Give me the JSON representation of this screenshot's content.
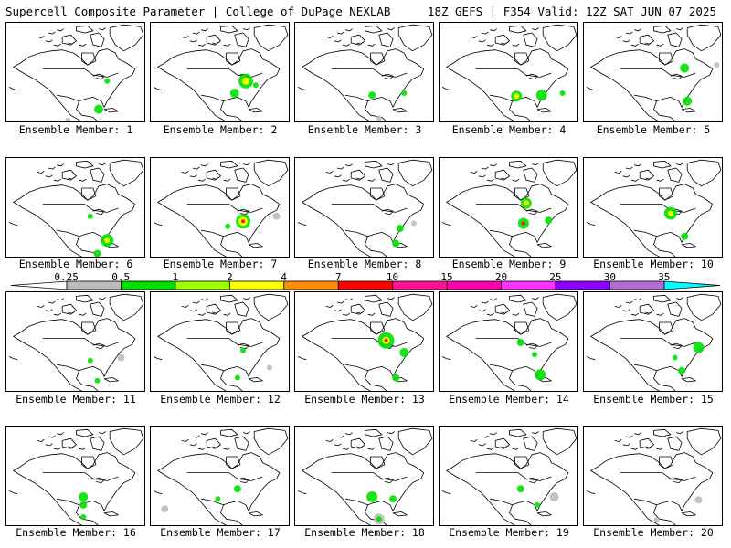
{
  "header": {
    "left_title": "Supercell Composite Parameter | College of DuPage NEXLAB",
    "right_title": "18Z GEFS | F354 Valid: 12Z SAT JUN 07 2025"
  },
  "member_label_prefix": "Ensemble Member:",
  "members": [
    {
      "number": "1",
      "blobs": [
        [
          0.72,
          0.58,
          3,
          "#00e000"
        ],
        [
          0.66,
          0.86,
          5,
          "#00e000"
        ],
        [
          0.44,
          0.97,
          3,
          "#bcbcbc"
        ]
      ]
    },
    {
      "number": "2",
      "blobs": [
        [
          0.68,
          0.58,
          8,
          "#00e000"
        ],
        [
          0.68,
          0.58,
          4,
          "#ffff00"
        ],
        [
          0.6,
          0.7,
          5,
          "#00e000"
        ],
        [
          0.75,
          0.62,
          3,
          "#00e000"
        ]
      ]
    },
    {
      "number": "3",
      "blobs": [
        [
          0.55,
          0.72,
          4,
          "#00e000"
        ],
        [
          0.78,
          0.7,
          3,
          "#00e000"
        ],
        [
          0.6,
          0.95,
          3,
          "#bcbcbc"
        ]
      ]
    },
    {
      "number": "4",
      "blobs": [
        [
          0.55,
          0.73,
          6,
          "#00e000"
        ],
        [
          0.55,
          0.73,
          3,
          "#ffff00"
        ],
        [
          0.73,
          0.72,
          6,
          "#00e000"
        ],
        [
          0.88,
          0.7,
          3,
          "#00e000"
        ]
      ]
    },
    {
      "number": "5",
      "blobs": [
        [
          0.72,
          0.45,
          5,
          "#00e000"
        ],
        [
          0.74,
          0.78,
          5,
          "#00e000"
        ],
        [
          0.95,
          0.42,
          3,
          "#bcbcbc"
        ]
      ]
    },
    {
      "number": "6",
      "blobs": [
        [
          0.72,
          0.82,
          7,
          "#00e000"
        ],
        [
          0.72,
          0.82,
          3,
          "#ffff00"
        ],
        [
          0.6,
          0.58,
          3,
          "#00e000"
        ],
        [
          0.65,
          0.95,
          4,
          "#00e000"
        ]
      ]
    },
    {
      "number": "7",
      "blobs": [
        [
          0.66,
          0.63,
          8,
          "#00e000"
        ],
        [
          0.66,
          0.63,
          5,
          "#ffff00"
        ],
        [
          0.66,
          0.63,
          2,
          "#ff0000"
        ],
        [
          0.55,
          0.68,
          3,
          "#00e000"
        ],
        [
          0.9,
          0.58,
          4,
          "#bcbcbc"
        ]
      ]
    },
    {
      "number": "8",
      "blobs": [
        [
          0.75,
          0.7,
          4,
          "#00e000"
        ],
        [
          0.72,
          0.85,
          4,
          "#00e000"
        ],
        [
          0.85,
          0.65,
          3,
          "#bcbcbc"
        ]
      ]
    },
    {
      "number": "9",
      "blobs": [
        [
          0.62,
          0.45,
          6,
          "#00e000"
        ],
        [
          0.62,
          0.45,
          3,
          "#ffff00"
        ],
        [
          0.6,
          0.65,
          6,
          "#00e000"
        ],
        [
          0.6,
          0.65,
          2,
          "#ff0000"
        ],
        [
          0.78,
          0.62,
          4,
          "#00e000"
        ]
      ]
    },
    {
      "number": "10",
      "blobs": [
        [
          0.62,
          0.55,
          7,
          "#00e000"
        ],
        [
          0.62,
          0.55,
          3,
          "#ffff00"
        ],
        [
          0.72,
          0.78,
          4,
          "#00e000"
        ]
      ]
    },
    {
      "number": "11",
      "blobs": [
        [
          0.6,
          0.68,
          3,
          "#00e000"
        ],
        [
          0.82,
          0.65,
          4,
          "#bcbcbc"
        ],
        [
          0.65,
          0.88,
          3,
          "#00e000"
        ]
      ]
    },
    {
      "number": "12",
      "blobs": [
        [
          0.66,
          0.58,
          3,
          "#00e000"
        ],
        [
          0.62,
          0.85,
          3,
          "#00e000"
        ],
        [
          0.85,
          0.75,
          3,
          "#bcbcbc"
        ]
      ]
    },
    {
      "number": "13",
      "blobs": [
        [
          0.65,
          0.48,
          9,
          "#00e000"
        ],
        [
          0.65,
          0.48,
          4,
          "#ffff00"
        ],
        [
          0.65,
          0.48,
          2,
          "#ff0000"
        ],
        [
          0.78,
          0.6,
          5,
          "#00e000"
        ],
        [
          0.72,
          0.85,
          4,
          "#00e000"
        ]
      ]
    },
    {
      "number": "14",
      "blobs": [
        [
          0.58,
          0.5,
          4,
          "#00e000"
        ],
        [
          0.72,
          0.82,
          6,
          "#00e000"
        ],
        [
          0.68,
          0.62,
          3,
          "#00e000"
        ]
      ]
    },
    {
      "number": "15",
      "blobs": [
        [
          0.82,
          0.55,
          6,
          "#00e000"
        ],
        [
          0.65,
          0.65,
          3,
          "#00e000"
        ],
        [
          0.7,
          0.78,
          4,
          "#00e000"
        ]
      ]
    },
    {
      "number": "16",
      "blobs": [
        [
          0.55,
          0.7,
          5,
          "#00e000"
        ],
        [
          0.55,
          0.78,
          4,
          "#00e000"
        ],
        [
          0.55,
          0.9,
          3,
          "#00e000"
        ]
      ]
    },
    {
      "number": "17",
      "blobs": [
        [
          0.62,
          0.62,
          4,
          "#00e000"
        ],
        [
          0.48,
          0.72,
          3,
          "#00e000"
        ],
        [
          0.1,
          0.82,
          4,
          "#bcbcbc"
        ]
      ]
    },
    {
      "number": "18",
      "blobs": [
        [
          0.55,
          0.7,
          6,
          "#00e000"
        ],
        [
          0.7,
          0.72,
          4,
          "#00e000"
        ],
        [
          0.6,
          0.92,
          6,
          "#bcbcbc"
        ],
        [
          0.6,
          0.92,
          3,
          "#00e000"
        ]
      ]
    },
    {
      "number": "19",
      "blobs": [
        [
          0.58,
          0.62,
          4,
          "#00e000"
        ],
        [
          0.7,
          0.78,
          3,
          "#00e000"
        ],
        [
          0.82,
          0.7,
          5,
          "#bcbcbc"
        ]
      ]
    },
    {
      "number": "20",
      "blobs": [
        [
          0.82,
          0.73,
          4,
          "#bcbcbc"
        ],
        [
          0.52,
          0.93,
          3,
          "#bcbcbc"
        ]
      ]
    }
  ],
  "colorbar": {
    "labels": [
      "0.25",
      "0.5",
      "1",
      "2",
      "4",
      "7",
      "10",
      "15",
      "20",
      "25",
      "30",
      "35"
    ],
    "colors": [
      "#bcbcbc",
      "#00e000",
      "#9eff00",
      "#ffff00",
      "#ff8c00",
      "#ff0000",
      "#ff1493",
      "#ff00aa",
      "#ff33ff",
      "#8c00ff",
      "#b26cd4",
      "#00ffff"
    ]
  }
}
